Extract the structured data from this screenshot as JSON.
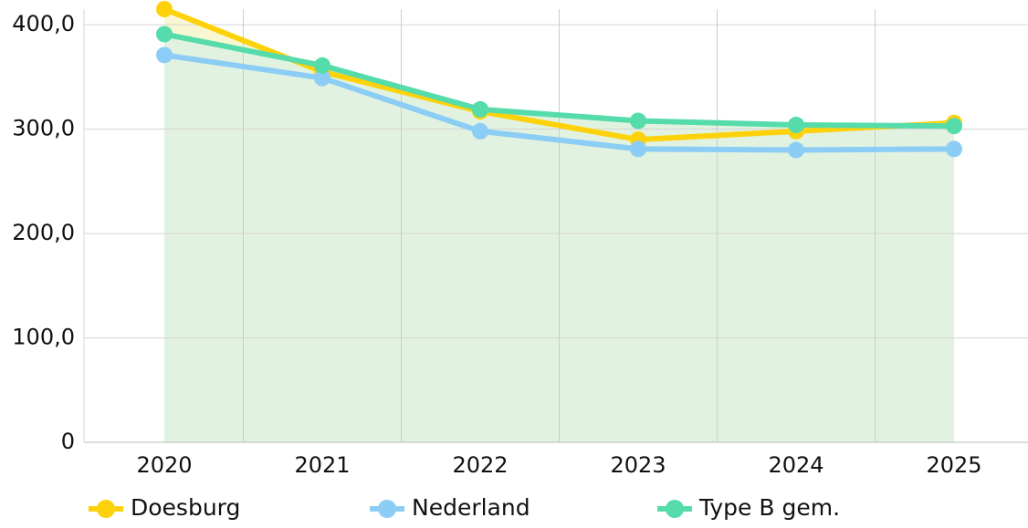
{
  "chart_data": {
    "type": "line",
    "categories": [
      "2020",
      "2021",
      "2022",
      "2023",
      "2024",
      "2025"
    ],
    "series": [
      {
        "name": "Doesburg",
        "color": "#fdd20a",
        "values": [
          415,
          355,
          317,
          290,
          298,
          306
        ]
      },
      {
        "name": "Nederland",
        "color": "#8ccdf5",
        "values": [
          371,
          349,
          298,
          281,
          280,
          281
        ]
      },
      {
        "name": "Type B gem.",
        "color": "#55dcaa",
        "values": [
          391,
          361,
          319,
          308,
          304,
          303
        ]
      }
    ],
    "ylim": [
      0,
      415
    ],
    "yticks": [
      0,
      {
        "value": 100,
        "label": "100,0"
      },
      {
        "value": 200,
        "label": "200,0"
      },
      {
        "value": 300,
        "label": "300,0"
      },
      {
        "value": 400,
        "label": "400,0"
      }
    ],
    "grid": true,
    "legend": "bottom"
  }
}
